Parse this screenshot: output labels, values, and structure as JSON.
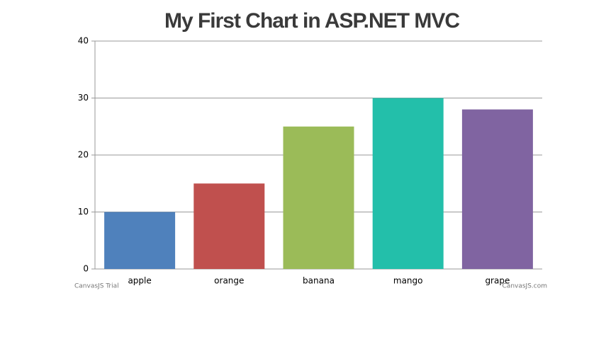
{
  "chart_data": {
    "type": "bar",
    "title": "My First Chart in ASP.NET MVC",
    "categories": [
      "apple",
      "orange",
      "banana",
      "mango",
      "grape"
    ],
    "values": [
      10,
      15,
      25,
      30,
      28
    ],
    "colors": [
      "#4f81bc",
      "#c0504e",
      "#9bbb58",
      "#23bfaa",
      "#8064a1"
    ],
    "ylim": [
      0,
      40
    ],
    "yticks": [
      0,
      10,
      20,
      30,
      40
    ],
    "grid": true,
    "watermark": "CanvasJS Trial",
    "credit": "CanvasJS.com"
  }
}
